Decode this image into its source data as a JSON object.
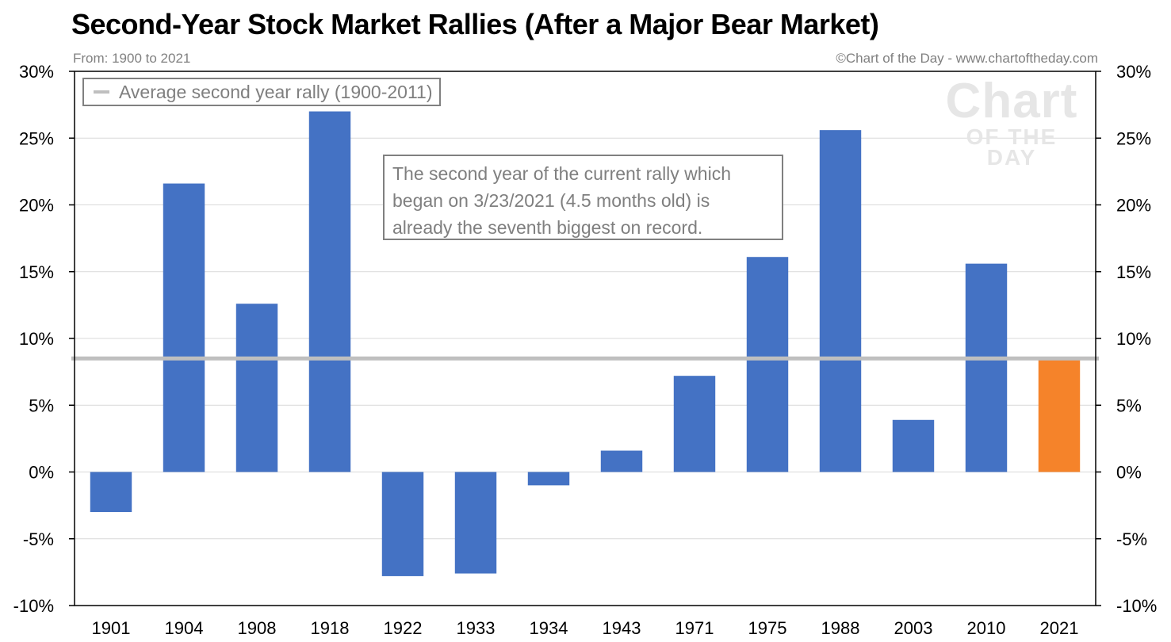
{
  "header": {
    "title": "Second-Year Stock Market Rallies (After a Major Bear Market)",
    "subtitle": "From: 1900 to 2021",
    "credit": "©Chart of the Day - www.chartoftheday.com"
  },
  "watermark": {
    "line1": "Chart",
    "line2": "OF THE DAY"
  },
  "legend": {
    "label": "Average second year rally (1900-2011)"
  },
  "annotation": {
    "lines": [
      "The second year of the current rally which",
      "began on 3/23/2021 (4.5 months old) is",
      "already the seventh biggest on record."
    ]
  },
  "chart_data": {
    "type": "bar",
    "categories": [
      "1901",
      "1904",
      "1908",
      "1918",
      "1922",
      "1933",
      "1934",
      "1943",
      "1971",
      "1975",
      "1988",
      "2003",
      "2010",
      "2021"
    ],
    "values": [
      -3.0,
      21.6,
      12.6,
      27.0,
      -7.8,
      -7.6,
      -1.0,
      1.6,
      7.2,
      16.1,
      25.6,
      3.9,
      15.6,
      8.5
    ],
    "ylim": [
      -10,
      30
    ],
    "yticks": [
      30,
      25,
      20,
      15,
      10,
      5,
      0,
      -5,
      -10
    ],
    "ytick_labels": [
      "30%",
      "25%",
      "20%",
      "15%",
      "10%",
      "5%",
      "0%",
      "-5%",
      "-10%"
    ],
    "average_line": {
      "name": "Average second year rally (1900-2011)",
      "value": 8.5
    },
    "colors": {
      "bar": "#4472c4",
      "highlight": "#f5832a",
      "highlight_index": 13,
      "average": "#bfbfbf",
      "grid": "#d9d9d9"
    },
    "grid": true,
    "legend_position": "top-left"
  }
}
